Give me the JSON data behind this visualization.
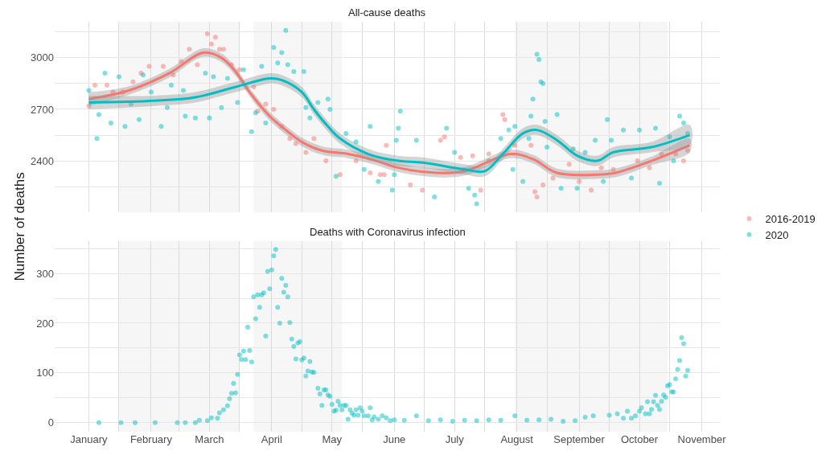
{
  "chart_data": [
    {
      "type": "scatter",
      "title": "All-cause deaths",
      "ylabel": "Number of deaths",
      "xlim": [
        "2019-12-15",
        "2020-11-10"
      ],
      "ylim": [
        2100,
        3210
      ],
      "xticks": [
        {
          "value": "2020-01-01",
          "label": null
        },
        {
          "value": "2020-01-16",
          "label": null
        },
        {
          "value": "2020-02-01",
          "label": null
        },
        {
          "value": "2020-02-15",
          "label": null
        },
        {
          "value": "2020-03-01",
          "label": null
        },
        {
          "value": "2020-03-16",
          "label": null
        },
        {
          "value": "2020-04-01",
          "label": null
        },
        {
          "value": "2020-04-16",
          "label": null
        },
        {
          "value": "2020-05-01",
          "label": null
        },
        {
          "value": "2020-05-16",
          "label": null
        },
        {
          "value": "2020-06-01",
          "label": null
        },
        {
          "value": "2020-06-16",
          "label": null
        },
        {
          "value": "2020-07-01",
          "label": null
        },
        {
          "value": "2020-07-16",
          "label": null
        },
        {
          "value": "2020-08-01",
          "label": null
        },
        {
          "value": "2020-08-16",
          "label": null
        },
        {
          "value": "2020-09-01",
          "label": null
        },
        {
          "value": "2020-09-16",
          "label": null
        },
        {
          "value": "2020-10-01",
          "label": null
        },
        {
          "value": "2020-10-16",
          "label": null
        },
        {
          "value": "2020-11-01",
          "label": null
        }
      ],
      "yticks": [
        {
          "value": 2250,
          "label": null
        },
        2400,
        {
          "value": 2550,
          "label": null
        },
        2700,
        {
          "value": 2850,
          "label": null
        },
        3000,
        {
          "value": 3150,
          "label": null
        }
      ],
      "tick_labels": "y",
      "grid": true,
      "legend": "right",
      "line_style": "solid",
      "bands": [
        {
          "axis": "x",
          "from": "2020-01-16",
          "to": "2020-03-16",
          "color": "#ebebeb"
        },
        {
          "axis": "x",
          "from": "2020-03-23",
          "to": "2020-05-06",
          "color": "#ebebeb"
        },
        {
          "axis": "x",
          "from": "2020-07-31",
          "to": "2020-10-15",
          "color": "#ebebeb"
        }
      ],
      "series": [
        {
          "name": "2016-2019",
          "color": "#f8766d",
          "marker": "circle",
          "x": [
            "2020-01-01",
            "2020-01-04",
            "2020-01-10",
            "2020-01-13",
            "2020-01-18",
            "2020-01-23",
            "2020-01-27",
            "2020-01-31",
            "2020-02-07",
            "2020-02-12",
            "2020-02-16",
            "2020-02-20",
            "2020-02-24",
            "2020-02-29",
            "2020-03-02",
            "2020-03-04",
            "2020-03-06",
            "2020-03-08",
            "2020-03-12",
            "2020-03-16",
            "2020-03-23",
            "2020-03-25",
            "2020-03-29",
            "2020-04-02",
            "2020-04-06",
            "2020-04-10",
            "2020-04-13",
            "2020-04-18",
            "2020-04-22",
            "2020-04-28",
            "2020-05-05",
            "2020-05-13",
            "2020-05-20",
            "2020-05-25",
            "2020-05-27",
            "2020-05-28",
            "2020-06-09",
            "2020-06-15",
            "2020-06-24",
            "2020-06-26",
            "2020-07-04",
            "2020-07-10",
            "2020-07-14",
            "2020-07-18",
            "2020-07-25",
            "2020-07-26",
            "2020-07-31",
            "2020-08-08",
            "2020-08-10",
            "2020-08-11",
            "2020-08-14",
            "2020-08-19",
            "2020-08-27",
            "2020-09-01",
            "2020-09-07",
            "2020-09-12",
            "2020-09-18",
            "2020-09-30",
            "2020-10-06",
            "2020-10-12",
            "2020-10-19",
            "2020-10-23",
            "2020-10-25"
          ],
          "values": [
            2720,
            2840,
            2840,
            2800,
            2800,
            2860,
            2910,
            2950,
            2950,
            2900,
            2980,
            3050,
            2960,
            3140,
            3080,
            3120,
            3050,
            3050,
            2960,
            2930,
            2830,
            2690,
            2730,
            2700,
            2600,
            2530,
            2500,
            2450,
            2530,
            2400,
            2320,
            2400,
            2330,
            2320,
            2320,
            2490,
            2260,
            2230,
            2520,
            2540,
            2420,
            2430,
            2230,
            2440,
            2670,
            2640,
            2490,
            2490,
            2220,
            2190,
            2260,
            2300,
            2380,
            2280,
            2230,
            2360,
            2350,
            2400,
            2360,
            2440,
            2440,
            2400,
            2460
          ]
        },
        {
          "name": "2020",
          "color": "#00bfc4",
          "marker": "circle",
          "x": [
            "2020-01-01",
            "2020-01-05",
            "2020-01-06",
            "2020-01-09",
            "2020-01-12",
            "2020-01-16",
            "2020-01-19",
            "2020-01-22",
            "2020-01-26",
            "2020-01-28",
            "2020-02-01",
            "2020-02-06",
            "2020-02-09",
            "2020-02-11",
            "2020-02-17",
            "2020-02-18",
            "2020-02-23",
            "2020-02-28",
            "2020-03-01",
            "2020-03-03",
            "2020-03-07",
            "2020-03-10",
            "2020-03-15",
            "2020-03-18",
            "2020-03-22",
            "2020-03-24",
            "2020-03-27",
            "2020-03-29",
            "2020-04-02",
            "2020-04-04",
            "2020-04-06",
            "2020-04-08",
            "2020-04-09",
            "2020-04-12",
            "2020-04-17",
            "2020-04-18",
            "2020-04-20",
            "2020-04-24",
            "2020-04-29",
            "2020-04-30",
            "2020-05-03",
            "2020-05-08",
            "2020-05-13",
            "2020-05-17",
            "2020-05-20",
            "2020-05-24",
            "2020-05-31",
            "2020-06-01",
            "2020-06-02",
            "2020-06-03",
            "2020-06-04",
            "2020-06-12",
            "2020-06-21",
            "2020-06-27",
            "2020-07-01",
            "2020-07-08",
            "2020-07-11",
            "2020-07-12",
            "2020-07-18",
            "2020-07-24",
            "2020-07-28",
            "2020-07-30",
            "2020-07-31",
            "2020-08-04",
            "2020-08-07",
            "2020-08-08",
            "2020-08-09",
            "2020-08-11",
            "2020-08-12",
            "2020-08-13",
            "2020-08-14",
            "2020-08-15",
            "2020-08-16",
            "2020-08-21",
            "2020-08-23",
            "2020-08-29",
            "2020-08-31",
            "2020-09-04",
            "2020-09-09",
            "2020-09-13",
            "2020-09-15",
            "2020-09-17",
            "2020-09-23",
            "2020-09-27",
            "2020-10-01",
            "2020-10-09",
            "2020-10-11",
            "2020-10-16",
            "2020-10-18",
            "2020-10-21",
            "2020-10-23",
            "2020-10-25"
          ],
          "values": [
            2810,
            2530,
            2670,
            2910,
            2620,
            2890,
            2600,
            2730,
            2640,
            2900,
            2800,
            2600,
            2710,
            2840,
            2810,
            2660,
            2650,
            2910,
            2650,
            2890,
            2710,
            2880,
            2740,
            2930,
            2570,
            2680,
            2950,
            2620,
            3060,
            2970,
            3030,
            3160,
            2960,
            2920,
            2920,
            2710,
            2650,
            2740,
            2760,
            2700,
            2310,
            2560,
            2510,
            2350,
            2600,
            2280,
            2230,
            2320,
            2520,
            2590,
            2690,
            2520,
            2190,
            2590,
            2450,
            2240,
            2200,
            2150,
            2400,
            2530,
            2580,
            2350,
            2600,
            2280,
            2530,
            2660,
            2760,
            3020,
            2990,
            2860,
            2850,
            2630,
            2480,
            2670,
            2240,
            2470,
            2240,
            2450,
            2520,
            2280,
            2640,
            2520,
            2580,
            2300,
            2580,
            2590,
            2270,
            2540,
            2400,
            2660,
            2620,
            2560
          ]
        },
        {
          "color": "#f8766d",
          "type": "line",
          "marker": "none",
          "x": [
            "2020-01-01",
            "2020-01-21",
            "2020-02-10",
            "2020-02-27",
            "2020-03-07",
            "2020-03-14",
            "2020-03-21",
            "2020-03-31",
            "2020-04-09",
            "2020-04-16",
            "2020-04-26",
            "2020-05-09",
            "2020-05-23",
            "2020-06-03",
            "2020-06-22",
            "2020-07-06",
            "2020-07-29",
            "2020-08-09",
            "2020-08-21",
            "2020-09-10",
            "2020-09-19",
            "2020-10-07",
            "2020-10-26"
          ],
          "values": [
            2760,
            2810,
            2910,
            3030,
            3000,
            2920,
            2800,
            2660,
            2570,
            2510,
            2460,
            2440,
            2400,
            2360,
            2330,
            2340,
            2440,
            2410,
            2330,
            2320,
            2330,
            2400,
            2490
          ],
          "lower": [
            2720,
            2785,
            2885,
            3005,
            2975,
            2895,
            2775,
            2635,
            2545,
            2485,
            2435,
            2415,
            2375,
            2335,
            2305,
            2315,
            2415,
            2385,
            2305,
            2295,
            2305,
            2375,
            2450
          ],
          "upper": [
            2800,
            2835,
            2935,
            3055,
            3025,
            2945,
            2825,
            2685,
            2595,
            2535,
            2485,
            2465,
            2425,
            2385,
            2355,
            2365,
            2465,
            2435,
            2355,
            2345,
            2355,
            2425,
            2530
          ]
        },
        {
          "color": "#00bfc4",
          "type": "line",
          "marker": "none",
          "x": [
            "2020-01-01",
            "2020-02-03",
            "2020-02-23",
            "2020-03-14",
            "2020-03-31",
            "2020-04-06",
            "2020-04-16",
            "2020-04-22",
            "2020-04-29",
            "2020-05-05",
            "2020-05-19",
            "2020-06-03",
            "2020-06-15",
            "2020-07-06",
            "2020-07-16",
            "2020-07-25",
            "2020-08-04",
            "2020-08-11",
            "2020-08-21",
            "2020-08-31",
            "2020-09-10",
            "2020-09-18",
            "2020-10-07",
            "2020-10-26"
          ],
          "values": [
            2740,
            2750,
            2770,
            2830,
            2880,
            2870,
            2800,
            2700,
            2600,
            2530,
            2440,
            2400,
            2390,
            2350,
            2340,
            2440,
            2560,
            2580,
            2520,
            2430,
            2400,
            2450,
            2480,
            2550
          ],
          "lower": [
            2700,
            2720,
            2740,
            2800,
            2850,
            2840,
            2770,
            2670,
            2570,
            2500,
            2410,
            2370,
            2360,
            2320,
            2310,
            2410,
            2530,
            2550,
            2490,
            2400,
            2370,
            2420,
            2450,
            2490
          ],
          "upper": [
            2780,
            2780,
            2800,
            2860,
            2910,
            2900,
            2830,
            2730,
            2630,
            2560,
            2470,
            2430,
            2420,
            2380,
            2370,
            2470,
            2590,
            2610,
            2550,
            2460,
            2430,
            2480,
            2510,
            2610
          ]
        }
      ]
    },
    {
      "type": "scatter",
      "title": "Deaths with Coronavirus infection",
      "xlim": [
        "2019-12-15",
        "2020-11-10"
      ],
      "ylim": [
        -18,
        365
      ],
      "xticks": [
        {
          "value": "2020-01-01",
          "label": "January"
        },
        {
          "value": "2020-01-16",
          "label": null
        },
        {
          "value": "2020-02-01",
          "label": "February"
        },
        {
          "value": "2020-02-15",
          "label": null
        },
        {
          "value": "2020-03-01",
          "label": "March"
        },
        {
          "value": "2020-03-16",
          "label": null
        },
        {
          "value": "2020-04-01",
          "label": "April"
        },
        {
          "value": "2020-04-16",
          "label": null
        },
        {
          "value": "2020-05-01",
          "label": "May"
        },
        {
          "value": "2020-05-16",
          "label": null
        },
        {
          "value": "2020-06-01",
          "label": "June"
        },
        {
          "value": "2020-06-16",
          "label": null
        },
        {
          "value": "2020-07-01",
          "label": "July"
        },
        {
          "value": "2020-07-16",
          "label": null
        },
        {
          "value": "2020-08-01",
          "label": "August"
        },
        {
          "value": "2020-08-16",
          "label": null
        },
        {
          "value": "2020-09-01",
          "label": "September"
        },
        {
          "value": "2020-09-16",
          "label": null
        },
        {
          "value": "2020-10-01",
          "label": "October"
        },
        {
          "value": "2020-10-16",
          "label": null
        },
        {
          "value": "2020-11-01",
          "label": "November"
        }
      ],
      "yticks": [
        0,
        {
          "value": 50,
          "label": null
        },
        100,
        {
          "value": 150,
          "label": null
        },
        200,
        {
          "value": 250,
          "label": null
        },
        300,
        {
          "value": 350,
          "label": null
        }
      ],
      "grid": true,
      "marker": "circle",
      "bands": [
        {
          "axis": "x",
          "from": "2020-01-16",
          "to": "2020-03-16",
          "color": "#ebebeb"
        },
        {
          "axis": "x",
          "from": "2020-03-23",
          "to": "2020-05-06",
          "color": "#ebebeb"
        },
        {
          "axis": "x",
          "from": "2020-07-31",
          "to": "2020-10-15",
          "color": "#ebebeb"
        }
      ],
      "series": [
        {
          "color": "#00bfc4",
          "x": [
            "2020-01-06",
            "2020-01-17",
            "2020-01-24",
            "2020-02-03",
            "2020-02-14",
            "2020-02-18",
            "2020-02-23",
            "2020-02-25",
            "2020-02-29",
            "2020-03-02",
            "2020-03-05",
            "2020-03-06",
            "2020-03-08",
            "2020-03-10",
            "2020-03-11",
            "2020-03-12",
            "2020-03-13",
            "2020-03-14",
            "2020-03-15",
            "2020-03-16",
            "2020-03-17",
            "2020-03-18",
            "2020-03-19",
            "2020-03-20",
            "2020-03-21",
            "2020-03-22",
            "2020-03-23",
            "2020-03-24",
            "2020-03-25",
            "2020-03-26",
            "2020-03-27",
            "2020-03-28",
            "2020-03-29",
            "2020-03-30",
            "2020-03-31",
            "2020-04-01",
            "2020-04-02",
            "2020-04-03",
            "2020-04-04",
            "2020-04-05",
            "2020-04-06",
            "2020-04-07",
            "2020-04-08",
            "2020-04-09",
            "2020-04-10",
            "2020-04-11",
            "2020-04-12",
            "2020-04-13",
            "2020-04-14",
            "2020-04-15",
            "2020-04-16",
            "2020-04-17",
            "2020-04-18",
            "2020-04-19",
            "2020-04-20",
            "2020-04-21",
            "2020-04-22",
            "2020-04-24",
            "2020-04-25",
            "2020-04-26",
            "2020-04-27",
            "2020-04-28",
            "2020-04-29",
            "2020-04-30",
            "2020-05-01",
            "2020-05-02",
            "2020-05-03",
            "2020-05-04",
            "2020-05-05",
            "2020-05-06",
            "2020-05-07",
            "2020-05-08",
            "2020-05-09",
            "2020-05-10",
            "2020-05-11",
            "2020-05-12",
            "2020-05-13",
            "2020-05-14",
            "2020-05-15",
            "2020-05-16",
            "2020-05-17",
            "2020-05-19",
            "2020-05-20",
            "2020-05-21",
            "2020-05-22",
            "2020-05-24",
            "2020-05-26",
            "2020-05-28",
            "2020-05-30",
            "2020-06-01",
            "2020-06-06",
            "2020-06-12",
            "2020-06-18",
            "2020-06-24",
            "2020-06-30",
            "2020-07-06",
            "2020-07-12",
            "2020-07-18",
            "2020-07-24",
            "2020-07-31",
            "2020-08-06",
            "2020-08-12",
            "2020-08-18",
            "2020-08-24",
            "2020-08-30",
            "2020-09-04",
            "2020-09-08",
            "2020-09-16",
            "2020-09-20",
            "2020-09-23",
            "2020-09-25",
            "2020-09-27",
            "2020-09-29",
            "2020-10-01",
            "2020-10-02",
            "2020-10-04",
            "2020-10-05",
            "2020-10-06",
            "2020-10-07",
            "2020-10-08",
            "2020-10-09",
            "2020-10-10",
            "2020-10-11",
            "2020-10-12",
            "2020-10-13",
            "2020-10-14",
            "2020-10-15",
            "2020-10-16",
            "2020-10-17",
            "2020-10-18",
            "2020-10-19",
            "2020-10-20",
            "2020-10-21",
            "2020-10-22",
            "2020-10-23",
            "2020-10-24",
            "2020-10-25"
          ],
          "values": [
            0,
            0,
            0,
            0,
            0,
            0,
            0,
            5,
            4,
            10,
            9,
            20,
            26,
            34,
            48,
            59,
            79,
            60,
            97,
            136,
            127,
            144,
            127,
            192,
            145,
            122,
            253,
            209,
            257,
            232,
            257,
            261,
            174,
            304,
            269,
            307,
            335,
            348,
            232,
            200,
            290,
            262,
            276,
            253,
            201,
            168,
            153,
            128,
            160,
            163,
            126,
            130,
            94,
            104,
            123,
            102,
            101,
            69,
            58,
            35,
            66,
            66,
            56,
            53,
            37,
            23,
            25,
            43,
            35,
            26,
            35,
            35,
            7,
            26,
            19,
            15,
            26,
            15,
            30,
            23,
            14,
            14,
            30,
            6,
            12,
            7,
            14,
            10,
            4,
            6,
            5,
            14,
            4,
            6,
            3,
            5,
            4,
            6,
            5,
            14,
            5,
            6,
            7,
            3,
            4,
            11,
            14,
            15,
            18,
            9,
            23,
            9,
            14,
            23,
            30,
            18,
            42,
            18,
            27,
            42,
            55,
            35,
            27,
            43,
            56,
            51,
            74,
            77,
            62,
            62,
            88,
            107,
            125,
            171,
            159,
            94,
            105
          ]
        }
      ]
    }
  ]
}
